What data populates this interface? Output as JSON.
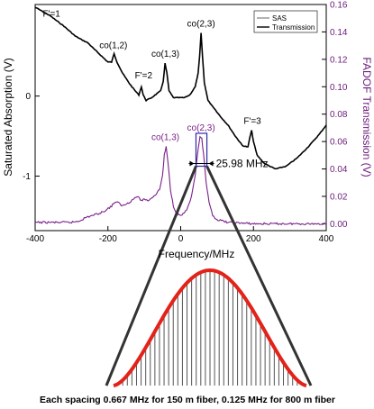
{
  "chart_data": {
    "type": "line",
    "xlabel": "Frequency/MHz",
    "ylabel_left": "Saturated Absorption (V)",
    "ylabel_right": "FADOF Transmission (V)",
    "xlim": [
      -400,
      400
    ],
    "ylim_right": [
      -0.005,
      0.16
    ],
    "x_ticks": [
      "-400",
      "-200",
      "0",
      "200",
      "400"
    ],
    "y_left_ticks": [
      "0",
      "-1"
    ],
    "y_right_ticks": [
      "0.00",
      "0.02",
      "0.04",
      "0.06",
      "0.08",
      "0.10",
      "0.12",
      "0.14",
      "0.16"
    ],
    "legend": [
      {
        "name": "SAS",
        "color": "#666666"
      },
      {
        "name": "Transmission",
        "color": "#000000"
      }
    ],
    "series": [
      {
        "name": "SAS",
        "color": "#000000",
        "axis": "right",
        "points": [
          [
            -400,
            0.158
          ],
          [
            -360,
            0.152
          ],
          [
            -320,
            0.144
          ],
          [
            -290,
            0.137
          ],
          [
            -270,
            0.134
          ],
          [
            -255,
            0.132
          ],
          [
            -240,
            0.128
          ],
          [
            -220,
            0.123
          ],
          [
            -200,
            0.118
          ],
          [
            -190,
            0.118
          ],
          [
            -183,
            0.124
          ],
          [
            -175,
            0.118
          ],
          [
            -160,
            0.11
          ],
          [
            -140,
            0.102
          ],
          [
            -125,
            0.097
          ],
          [
            -115,
            0.094
          ],
          [
            -108,
            0.1
          ],
          [
            -103,
            0.094
          ],
          [
            -95,
            0.09
          ],
          [
            -80,
            0.092
          ],
          [
            -65,
            0.095
          ],
          [
            -55,
            0.097
          ],
          [
            -48,
            0.104
          ],
          [
            -43,
            0.117
          ],
          [
            -38,
            0.11
          ],
          [
            -32,
            0.097
          ],
          [
            -20,
            0.092
          ],
          [
            -5,
            0.092
          ],
          [
            10,
            0.092
          ],
          [
            25,
            0.094
          ],
          [
            40,
            0.1
          ],
          [
            48,
            0.11
          ],
          [
            52,
            0.122
          ],
          [
            56,
            0.139
          ],
          [
            60,
            0.122
          ],
          [
            65,
            0.103
          ],
          [
            75,
            0.09
          ],
          [
            90,
            0.085
          ],
          [
            110,
            0.078
          ],
          [
            130,
            0.072
          ],
          [
            150,
            0.064
          ],
          [
            170,
            0.057
          ],
          [
            185,
            0.056
          ],
          [
            190,
            0.063
          ],
          [
            195,
            0.068
          ],
          [
            200,
            0.06
          ],
          [
            210,
            0.05
          ],
          [
            230,
            0.044
          ],
          [
            260,
            0.04
          ],
          [
            290,
            0.042
          ],
          [
            320,
            0.048
          ],
          [
            350,
            0.056
          ],
          [
            380,
            0.065
          ],
          [
            400,
            0.072
          ]
        ]
      },
      {
        "name": "Transmission",
        "color": "#7a1f8a",
        "axis": "right",
        "points": [
          [
            -400,
            0.001
          ],
          [
            -340,
            0.001
          ],
          [
            -300,
            0.001
          ],
          [
            -280,
            0.002
          ],
          [
            -265,
            0.004
          ],
          [
            -255,
            0.005
          ],
          [
            -245,
            0.006
          ],
          [
            -230,
            0.007
          ],
          [
            -220,
            0.008
          ],
          [
            -205,
            0.01
          ],
          [
            -190,
            0.013
          ],
          [
            -180,
            0.016
          ],
          [
            -170,
            0.015
          ],
          [
            -160,
            0.013
          ],
          [
            -140,
            0.016
          ],
          [
            -120,
            0.02
          ],
          [
            -108,
            0.017
          ],
          [
            -100,
            0.018
          ],
          [
            -90,
            0.017
          ],
          [
            -80,
            0.019
          ],
          [
            -70,
            0.021
          ],
          [
            -58,
            0.025
          ],
          [
            -50,
            0.035
          ],
          [
            -45,
            0.05
          ],
          [
            -40,
            0.056
          ],
          [
            -35,
            0.045
          ],
          [
            -28,
            0.025
          ],
          [
            -20,
            0.013
          ],
          [
            -10,
            0.007
          ],
          [
            0,
            0.006
          ],
          [
            10,
            0.008
          ],
          [
            20,
            0.012
          ],
          [
            30,
            0.02
          ],
          [
            40,
            0.035
          ],
          [
            48,
            0.055
          ],
          [
            53,
            0.063
          ],
          [
            58,
            0.062
          ],
          [
            63,
            0.05
          ],
          [
            70,
            0.03
          ],
          [
            78,
            0.015
          ],
          [
            88,
            0.006
          ],
          [
            100,
            0.003
          ],
          [
            130,
            0.001
          ],
          [
            200,
            0.0
          ],
          [
            300,
            0.0
          ],
          [
            400,
            0.0
          ]
        ]
      }
    ],
    "annotations": [
      {
        "text": "F'=1",
        "x": -355,
        "y": 0.149,
        "color": "#000000"
      },
      {
        "text": "co(1,2)",
        "x": -185,
        "y": 0.126,
        "color": "#000000"
      },
      {
        "text": "F'=2",
        "x": -102,
        "y": 0.104,
        "color": "#000000"
      },
      {
        "text": "co(1,3)",
        "x": -42,
        "y": 0.12,
        "color": "#000000"
      },
      {
        "text": "co(2,3)",
        "x": 56,
        "y": 0.142,
        "color": "#000000"
      },
      {
        "text": "F'=3",
        "x": 197,
        "y": 0.071,
        "color": "#000000"
      },
      {
        "text": "co(1,3)",
        "x": -42,
        "y": 0.059,
        "color": "#7a1f8a"
      },
      {
        "text": "co(2,3)",
        "x": 56,
        "y": 0.066,
        "color": "#7a1f8a"
      }
    ],
    "width_label": "25.98 MHz",
    "zoom_window": {
      "x": [
        42,
        72
      ],
      "y": [
        0.042,
        0.066
      ]
    },
    "comb_lines": 42,
    "caption": "Each spacing 0.667 MHz for 150 m fiber, 0.125 MHz for 800 m fiber"
  }
}
